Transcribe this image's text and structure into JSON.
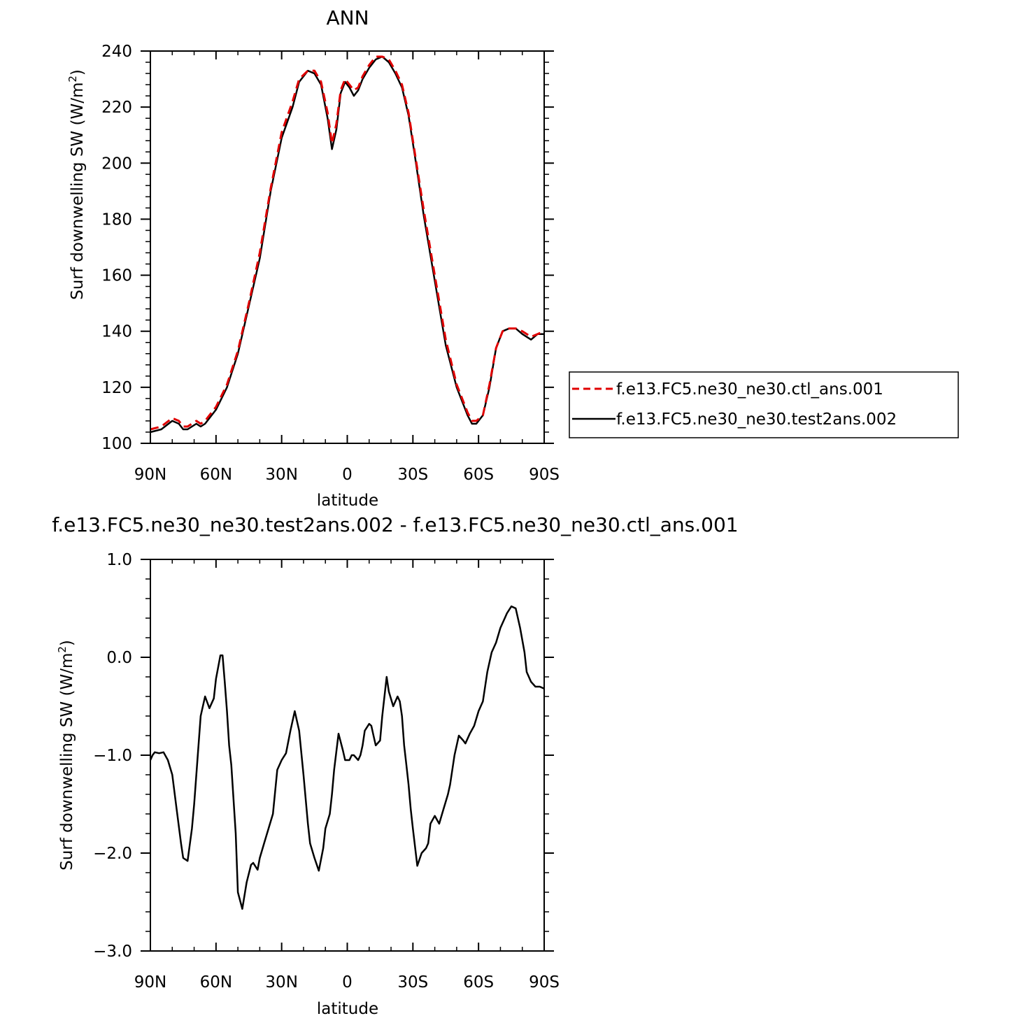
{
  "chart_data": [
    {
      "type": "line",
      "title": "ANN",
      "xlabel": "latitude",
      "ylabel_main": "Surf downwelling SW (W/m",
      "ylabel_sup": "2",
      "ylabel_end": ")",
      "xlim": [
        90,
        -90
      ],
      "ylim": [
        100,
        240
      ],
      "xticks": [
        90,
        60,
        30,
        0,
        -30,
        -60,
        -90
      ],
      "xtick_labels": [
        "90N",
        "60N",
        "30N",
        "0",
        "30S",
        "60S",
        "90S"
      ],
      "yticks": [
        100,
        120,
        140,
        160,
        180,
        200,
        220,
        240
      ],
      "ytick_labels": [
        "100",
        "120",
        "140",
        "160",
        "180",
        "200",
        "220",
        "240"
      ],
      "grid": false,
      "legend_position": "right",
      "series": [
        {
          "name": "f.e13.FC5.ne30_ne30.ctl_ans.001",
          "color": "#e00000",
          "dash": "dashed",
          "x": [
            90,
            85,
            80,
            77,
            75,
            73,
            71,
            69,
            67,
            65,
            60,
            55,
            50,
            45,
            40,
            35,
            30,
            25,
            22,
            18,
            15,
            12,
            9,
            7,
            5,
            3,
            1,
            -1,
            -3,
            -5,
            -7,
            -10,
            -13,
            -16,
            -19,
            -22,
            -25,
            -28,
            -31,
            -35,
            -40,
            -45,
            -50,
            -55,
            -57,
            -59,
            -62,
            -65,
            -68,
            -71,
            -74,
            -77,
            -80,
            -84,
            -87,
            -90
          ],
          "y": [
            105,
            106,
            109,
            108,
            106,
            106,
            107,
            108,
            107,
            108,
            113,
            121,
            133,
            150,
            168,
            191,
            211,
            222,
            230,
            233,
            233,
            229,
            218,
            207,
            214,
            226,
            230,
            228,
            226,
            227,
            231,
            235,
            238,
            238,
            237,
            233,
            228,
            218,
            203,
            183,
            160,
            137,
            121,
            111,
            108,
            108,
            110,
            121,
            134,
            140,
            141,
            141,
            140,
            138,
            139,
            140
          ]
        },
        {
          "name": "f.e13.FC5.ne30_ne30.test2ans.002",
          "color": "#000000",
          "dash": "solid",
          "x": [
            90,
            85,
            80,
            77,
            75,
            73,
            71,
            69,
            67,
            65,
            60,
            55,
            50,
            45,
            40,
            35,
            30,
            25,
            22,
            18,
            15,
            12,
            9,
            7,
            5,
            3,
            1,
            -1,
            -3,
            -5,
            -7,
            -10,
            -13,
            -16,
            -19,
            -22,
            -25,
            -28,
            -31,
            -35,
            -40,
            -45,
            -50,
            -55,
            -57,
            -59,
            -62,
            -65,
            -68,
            -71,
            -74,
            -77,
            -80,
            -84,
            -87,
            -90
          ],
          "y": [
            104,
            105,
            108,
            107,
            105,
            105,
            106,
            107,
            106,
            107,
            112,
            120,
            132,
            149,
            166,
            190,
            209,
            220,
            229,
            233,
            232,
            228,
            216,
            205,
            212,
            225,
            229,
            227,
            224,
            226,
            230,
            234,
            237,
            238,
            236,
            232,
            227,
            217,
            202,
            181,
            158,
            135,
            120,
            110,
            107,
            107,
            110,
            120,
            134,
            140,
            141,
            141,
            139,
            137,
            139,
            139
          ]
        }
      ]
    },
    {
      "type": "line",
      "title": "f.e13.FC5.ne30_ne30.test2ans.002 - f.e13.FC5.ne30_ne30.ctl_ans.001",
      "xlabel": "latitude",
      "ylabel_main": "Surf downwelling SW (W/m",
      "ylabel_sup": "2",
      "ylabel_end": ")",
      "xlim": [
        90,
        -90
      ],
      "ylim": [
        -3.0,
        1.0
      ],
      "xticks": [
        90,
        60,
        30,
        0,
        -30,
        -60,
        -90
      ],
      "xtick_labels": [
        "90N",
        "60N",
        "30N",
        "0",
        "30S",
        "60S",
        "90S"
      ],
      "yticks": [
        -3.0,
        -2.0,
        -1.0,
        0.0,
        1.0
      ],
      "ytick_labels": [
        "−3.0",
        "−2.0",
        "−1.0",
        "0.0",
        "1.0"
      ],
      "grid": false,
      "series": [
        {
          "color": "#000000",
          "dash": "solid",
          "x": [
            90,
            89,
            88,
            86,
            84,
            82,
            80,
            78,
            76,
            75,
            73,
            71,
            70,
            68,
            67,
            65,
            63,
            61,
            60,
            58,
            57,
            56,
            55,
            54,
            53,
            51,
            50,
            48,
            46,
            44,
            43,
            41,
            40,
            38,
            36,
            34,
            32,
            30,
            28,
            26,
            24,
            22,
            20,
            18,
            17,
            15,
            13,
            11,
            10,
            8,
            7,
            6,
            4,
            2,
            1,
            -1,
            -2,
            -3,
            -5,
            -6,
            -7,
            -8,
            -10,
            -11,
            -12,
            -13,
            -15,
            -16,
            -18,
            -19,
            -21,
            -23,
            -24,
            -25,
            -26,
            -27,
            -28,
            -29,
            -30,
            -32,
            -34,
            -36,
            -37,
            -38,
            -40,
            -42,
            -44,
            -46,
            -47,
            -49,
            -51,
            -53,
            -54,
            -56,
            -58,
            -60,
            -62,
            -64,
            -66,
            -68,
            -70,
            -72,
            -73,
            -75,
            -77,
            -79,
            -81,
            -82,
            -84,
            -86,
            -88,
            -90
          ],
          "y": [
            -1.05,
            -1.0,
            -0.97,
            -0.98,
            -0.97,
            -1.05,
            -1.2,
            -1.55,
            -1.9,
            -2.05,
            -2.08,
            -1.75,
            -1.5,
            -0.9,
            -0.6,
            -0.4,
            -0.52,
            -0.42,
            -0.22,
            0.02,
            0.02,
            -0.25,
            -0.55,
            -0.9,
            -1.1,
            -1.8,
            -2.4,
            -2.57,
            -2.3,
            -2.12,
            -2.1,
            -2.17,
            -2.05,
            -1.9,
            -1.75,
            -1.6,
            -1.15,
            -1.05,
            -0.98,
            -0.75,
            -0.55,
            -0.75,
            -1.2,
            -1.7,
            -1.9,
            -2.05,
            -2.18,
            -1.95,
            -1.75,
            -1.6,
            -1.4,
            -1.15,
            -0.78,
            -0.95,
            -1.05,
            -1.05,
            -1.0,
            -1.0,
            -1.05,
            -1.0,
            -0.9,
            -0.75,
            -0.68,
            -0.7,
            -0.8,
            -0.9,
            -0.85,
            -0.6,
            -0.2,
            -0.35,
            -0.5,
            -0.4,
            -0.45,
            -0.6,
            -0.9,
            -1.1,
            -1.3,
            -1.55,
            -1.75,
            -2.13,
            -2.0,
            -1.95,
            -1.9,
            -1.7,
            -1.62,
            -1.7,
            -1.55,
            -1.4,
            -1.3,
            -1.0,
            -0.8,
            -0.85,
            -0.88,
            -0.78,
            -0.7,
            -0.55,
            -0.45,
            -0.15,
            0.05,
            0.15,
            0.3,
            0.4,
            0.45,
            0.52,
            0.5,
            0.3,
            0.05,
            -0.15,
            -0.25,
            -0.3,
            -0.3,
            -0.32
          ]
        }
      ]
    }
  ]
}
